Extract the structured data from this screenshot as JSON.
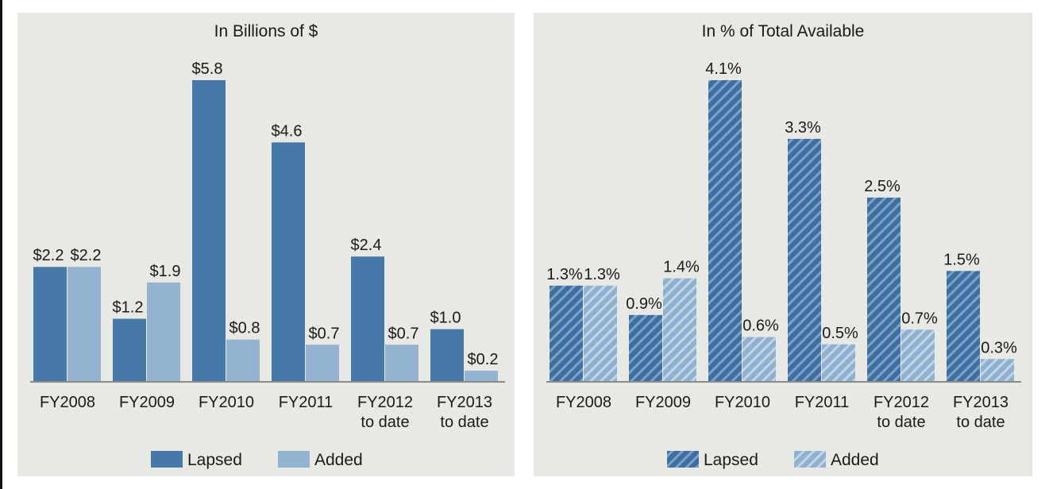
{
  "colors": {
    "lapsed": "#4678a8",
    "added": "#94b3d0",
    "panel": "#e8e8e4"
  },
  "chart_data": [
    {
      "type": "bar",
      "title": "In Billions of $",
      "categories": [
        [
          "FY2008"
        ],
        [
          "FY2009"
        ],
        [
          "FY2010"
        ],
        [
          "FY2011"
        ],
        [
          "FY2012",
          "to date"
        ],
        [
          "FY2013",
          "to date"
        ]
      ],
      "series": [
        {
          "name": "Lapsed",
          "values": [
            2.2,
            1.2,
            5.8,
            4.6,
            2.4,
            1.0
          ],
          "labels": [
            "$2.2",
            "$1.2",
            "$5.8",
            "$4.6",
            "$2.4",
            "$1.0"
          ]
        },
        {
          "name": "Added",
          "values": [
            2.2,
            1.9,
            0.8,
            0.7,
            0.7,
            0.2
          ],
          "labels": [
            "$2.2",
            "$1.9",
            "$0.8",
            "$0.7",
            "$0.7",
            "$0.2"
          ]
        }
      ],
      "ylim": [
        0,
        5.8
      ],
      "hatched": false,
      "legend": "bottom"
    },
    {
      "type": "bar",
      "title": "In % of Total Available",
      "categories": [
        [
          "FY2008"
        ],
        [
          "FY2009"
        ],
        [
          "FY2010"
        ],
        [
          "FY2011"
        ],
        [
          "FY2012",
          "to date"
        ],
        [
          "FY2013",
          "to date"
        ]
      ],
      "series": [
        {
          "name": "Lapsed",
          "values": [
            1.3,
            0.9,
            4.1,
            3.3,
            2.5,
            1.5
          ],
          "labels": [
            "1.3%",
            "0.9%",
            "4.1%",
            "3.3%",
            "2.5%",
            "1.5%"
          ]
        },
        {
          "name": "Added",
          "values": [
            1.3,
            1.4,
            0.6,
            0.5,
            0.7,
            0.3
          ],
          "labels": [
            "1.3%",
            "1.4%",
            "0.6%",
            "0.5%",
            "0.7%",
            "0.3%"
          ]
        }
      ],
      "ylim": [
        0,
        4.1
      ],
      "hatched": true,
      "legend": "bottom"
    }
  ]
}
